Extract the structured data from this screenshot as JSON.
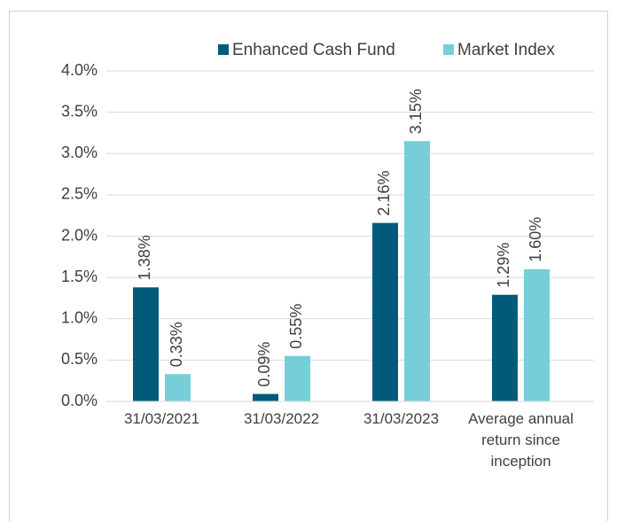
{
  "chart_data": {
    "type": "bar",
    "categories": [
      "31/03/2021",
      "31/03/2022",
      "31/03/2023",
      "Average annual return since inception"
    ],
    "series": [
      {
        "name": "Enhanced Cash Fund",
        "color": "#005b7a",
        "values": [
          1.38,
          0.09,
          2.16,
          1.29
        ],
        "value_labels": [
          "1.38%",
          "0.09%",
          "2.16%",
          "1.29%"
        ]
      },
      {
        "name": "Market Index",
        "color": "#76ced9",
        "values": [
          0.33,
          0.55,
          3.15,
          1.6
        ],
        "value_labels": [
          "0.33%",
          "0.55%",
          "3.15%",
          "1.60%"
        ]
      }
    ],
    "ylim": [
      0,
      4
    ],
    "yticks": [
      {
        "value": 0,
        "label": "0.0%"
      },
      {
        "value": 0.5,
        "label": "0.5%"
      },
      {
        "value": 1,
        "label": "1.0%"
      },
      {
        "value": 1.5,
        "label": "1.5%"
      },
      {
        "value": 2,
        "label": "2.0%"
      },
      {
        "value": 2.5,
        "label": "2.5%"
      },
      {
        "value": 3,
        "label": "3.0%"
      },
      {
        "value": 3.5,
        "label": "3.5%"
      },
      {
        "value": 4,
        "label": "4.0%"
      }
    ],
    "grid": true,
    "legend": "top"
  }
}
